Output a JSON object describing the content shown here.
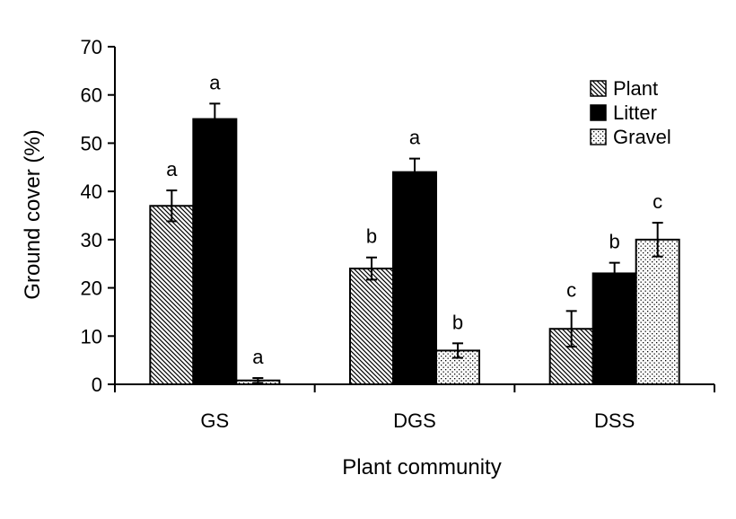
{
  "chart_data": {
    "type": "bar",
    "title": "",
    "xlabel": "Plant community",
    "ylabel": "Ground cover (%)",
    "ylim": [
      0,
      70
    ],
    "yticks": [
      0,
      10,
      20,
      30,
      40,
      50,
      60,
      70
    ],
    "categories": [
      "GS",
      "DGS",
      "DSS"
    ],
    "legend_position": "top-right",
    "series": [
      {
        "name": "Plant",
        "pattern": "diagonal-hatch",
        "values": [
          37,
          24,
          11.5
        ],
        "errors": [
          3.2,
          2.3,
          3.7
        ],
        "letters": [
          "a",
          "b",
          "c"
        ]
      },
      {
        "name": "Litter",
        "pattern": "solid-black",
        "values": [
          55,
          44,
          23
        ],
        "errors": [
          3.2,
          2.8,
          2.2
        ],
        "letters": [
          "a",
          "a",
          "b"
        ]
      },
      {
        "name": "Gravel",
        "pattern": "dots",
        "values": [
          0.8,
          7,
          30
        ],
        "errors": [
          0.5,
          1.5,
          3.5
        ],
        "letters": [
          "a",
          "b",
          "c"
        ]
      }
    ]
  }
}
